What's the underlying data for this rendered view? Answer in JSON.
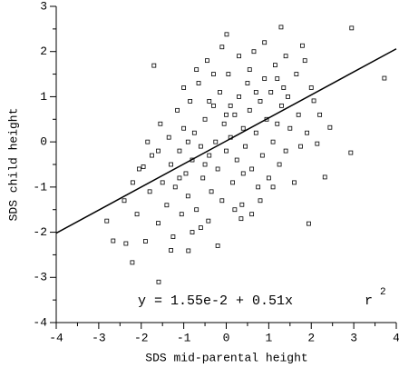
{
  "chart_data": {
    "type": "scatter",
    "x_label": "SDS mid-parental height",
    "y_label": "SDS child height",
    "annotations": [
      "y = 1.55e-2 + 0.51x",
      "r",
      "2"
    ],
    "xlim": [
      -4,
      4
    ],
    "ylim": [
      -4,
      3
    ],
    "xticks": [
      -4,
      -3,
      -2,
      -1,
      0,
      1,
      2,
      3,
      4
    ],
    "yticks": [
      -4,
      -3,
      -2,
      -1,
      0,
      1,
      2,
      3
    ],
    "color": "#000000",
    "fit": {
      "x": [
        -4,
        4
      ],
      "y": [
        -2.02,
        2.06
      ]
    },
    "x": [
      -1.7,
      -1.59,
      -2.21,
      -2.81,
      -2.66,
      -2.36,
      3.72,
      2.93,
      2.44,
      2.95,
      0.01,
      2.06,
      2.14,
      1.94,
      1.79,
      1.29,
      2.32,
      -0.42,
      0.37,
      -0.89,
      -2.05,
      -1.95,
      -1.8,
      -1.75,
      -1.6,
      -1.55,
      -1.5,
      -1.4,
      -1.35,
      -1.3,
      -1.25,
      -1.2,
      -1.15,
      -1.1,
      -1.05,
      -1.0,
      -0.95,
      -0.9,
      -0.85,
      -0.8,
      -0.75,
      -0.7,
      -0.65,
      -0.6,
      -0.55,
      -0.5,
      -0.45,
      -0.4,
      -0.35,
      -0.3,
      -0.25,
      -0.2,
      -0.15,
      -0.1,
      -0.05,
      0.0,
      0.05,
      0.1,
      0.15,
      0.2,
      0.25,
      0.3,
      0.35,
      0.4,
      0.45,
      0.5,
      0.55,
      0.6,
      0.65,
      0.7,
      0.75,
      0.8,
      0.85,
      0.9,
      0.95,
      1.0,
      1.05,
      1.1,
      1.15,
      1.2,
      1.25,
      1.3,
      1.35,
      1.4,
      1.45,
      1.5,
      1.6,
      1.65,
      1.7,
      1.75,
      1.85,
      1.9,
      2.0,
      2.2,
      -2.4,
      -2.2,
      -2.1,
      -1.9,
      -1.85,
      -0.8,
      -0.6,
      0.2,
      0.6,
      -0.3,
      -0.1,
      0.3,
      0.55,
      -0.7,
      -1.0,
      -1.3,
      0.8,
      1.1,
      1.4,
      0.9,
      -0.2,
      -1.6,
      -0.4,
      0.4,
      0.1,
      -0.9,
      1.2,
      0.7,
      -0.5,
      -1.1,
      0.0
    ],
    "y": [
      1.69,
      -3.1,
      -2.67,
      -1.75,
      -2.19,
      -2.25,
      1.41,
      -0.24,
      0.32,
      2.52,
      2.38,
      0.91,
      -0.04,
      -1.81,
      2.13,
      2.54,
      -0.78,
      -1.75,
      -1.39,
      -2.41,
      -0.6,
      -0.55,
      -1.1,
      -0.3,
      -1.8,
      0.4,
      -0.9,
      -1.4,
      0.1,
      -0.5,
      -2.1,
      -1.0,
      0.7,
      -0.2,
      -1.6,
      0.3,
      -0.7,
      -1.2,
      0.9,
      -0.4,
      0.2,
      -1.5,
      1.3,
      -0.1,
      -0.8,
      0.5,
      1.8,
      -0.3,
      -1.1,
      0.8,
      0.0,
      -0.6,
      1.1,
      -1.3,
      0.4,
      -0.2,
      1.5,
      0.1,
      -0.9,
      0.6,
      -0.4,
      1.0,
      -1.7,
      0.3,
      -0.1,
      1.3,
      0.7,
      -0.6,
      2.0,
      0.2,
      -1.0,
      0.9,
      -0.3,
      1.4,
      0.5,
      -0.8,
      1.1,
      0.0,
      1.7,
      0.4,
      -0.5,
      0.8,
      1.2,
      -0.2,
      1.0,
      0.3,
      -0.9,
      1.5,
      0.6,
      -0.1,
      1.8,
      0.2,
      1.2,
      0.6,
      -1.3,
      -0.9,
      -1.6,
      -2.2,
      0.0,
      -2.0,
      -1.9,
      -1.5,
      -1.6,
      1.5,
      2.1,
      1.9,
      1.6,
      1.6,
      1.2,
      -2.4,
      -1.3,
      -1.0,
      1.9,
      2.2,
      -2.3,
      -0.2,
      0.9,
      -0.7,
      0.8,
      0.0,
      1.4,
      1.1,
      -0.5,
      -0.8,
      0.6
    ]
  }
}
